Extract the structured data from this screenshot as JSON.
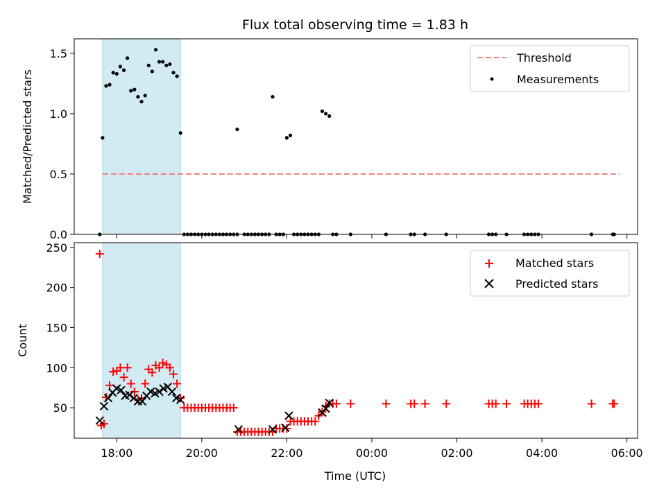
{
  "figure_title": "Flux total observing time = 1.83 h",
  "colors": {
    "threshold": "#f08080",
    "measurement": "#000000",
    "matched": "#ff0000",
    "predicted": "#000000",
    "span": "#add8e6"
  },
  "chart_data": [
    {
      "type": "scatter",
      "title": "Flux total observing time = 1.83 h",
      "xlabel": "",
      "ylabel": "Matched/Predicted stars",
      "xlim": [
        "17:00",
        "06:15"
      ],
      "ylim": [
        0,
        1.62
      ],
      "yticks": [
        "0.0",
        "0.5",
        "1.0",
        "1.5"
      ],
      "xticks": [
        "18:00",
        "20:00",
        "22:00",
        "00:00",
        "02:00",
        "04:00",
        "06:00"
      ],
      "highlight_span": [
        "17:40",
        "19:30"
      ],
      "legend": {
        "placement": "top-right",
        "threshold_label": "Threshold",
        "measurements_label": "Measurements"
      },
      "threshold": {
        "name": "Threshold",
        "value": 0.5,
        "x_range": [
          "17:40",
          "05:50"
        ]
      },
      "series": [
        {
          "name": "Measurements",
          "points": [
            [
              "17:36",
              0.0
            ],
            [
              "17:40",
              0.8
            ],
            [
              "17:45",
              1.23
            ],
            [
              "17:50",
              1.24
            ],
            [
              "17:55",
              1.34
            ],
            [
              "18:00",
              1.33
            ],
            [
              "18:05",
              1.39
            ],
            [
              "18:10",
              1.36
            ],
            [
              "18:15",
              1.46
            ],
            [
              "18:20",
              1.19
            ],
            [
              "18:25",
              1.2
            ],
            [
              "18:30",
              1.14
            ],
            [
              "18:35",
              1.1
            ],
            [
              "18:40",
              1.15
            ],
            [
              "18:45",
              1.4
            ],
            [
              "18:50",
              1.35
            ],
            [
              "18:55",
              1.53
            ],
            [
              "19:00",
              1.43
            ],
            [
              "19:05",
              1.43
            ],
            [
              "19:10",
              1.4
            ],
            [
              "19:15",
              1.41
            ],
            [
              "19:20",
              1.34
            ],
            [
              "19:25",
              1.31
            ],
            [
              "19:30",
              0.84
            ],
            [
              "19:35",
              0.0
            ],
            [
              "19:40",
              0.0
            ],
            [
              "19:45",
              0.0
            ],
            [
              "19:50",
              0.0
            ],
            [
              "19:55",
              0.0
            ],
            [
              "20:00",
              0.0
            ],
            [
              "20:05",
              0.0
            ],
            [
              "20:10",
              0.0
            ],
            [
              "20:15",
              0.0
            ],
            [
              "20:20",
              0.0
            ],
            [
              "20:25",
              0.0
            ],
            [
              "20:30",
              0.0
            ],
            [
              "20:35",
              0.0
            ],
            [
              "20:40",
              0.0
            ],
            [
              "20:45",
              0.0
            ],
            [
              "20:50",
              0.0
            ],
            [
              "20:50",
              0.87
            ],
            [
              "21:00",
              0.0
            ],
            [
              "21:05",
              0.0
            ],
            [
              "21:10",
              0.0
            ],
            [
              "21:15",
              0.0
            ],
            [
              "21:20",
              0.0
            ],
            [
              "21:25",
              0.0
            ],
            [
              "21:30",
              0.0
            ],
            [
              "21:35",
              0.0
            ],
            [
              "21:40",
              1.14
            ],
            [
              "21:45",
              0.0
            ],
            [
              "21:50",
              0.0
            ],
            [
              "21:55",
              0.0
            ],
            [
              "22:00",
              0.8
            ],
            [
              "22:05",
              0.82
            ],
            [
              "22:10",
              0.0
            ],
            [
              "22:15",
              0.0
            ],
            [
              "22:20",
              0.0
            ],
            [
              "22:25",
              0.0
            ],
            [
              "22:30",
              0.0
            ],
            [
              "22:35",
              0.0
            ],
            [
              "22:40",
              0.0
            ],
            [
              "22:45",
              0.0
            ],
            [
              "22:50",
              1.02
            ],
            [
              "22:55",
              1.0
            ],
            [
              "23:00",
              0.98
            ],
            [
              "23:05",
              0.0
            ],
            [
              "23:10",
              0.0
            ],
            [
              "23:30",
              0.0
            ],
            [
              "00:20",
              0.0
            ],
            [
              "00:55",
              0.0
            ],
            [
              "01:00",
              0.0
            ],
            [
              "01:15",
              0.0
            ],
            [
              "01:45",
              0.0
            ],
            [
              "02:45",
              0.0
            ],
            [
              "02:50",
              0.0
            ],
            [
              "02:55",
              0.0
            ],
            [
              "03:10",
              0.0
            ],
            [
              "03:35",
              0.0
            ],
            [
              "03:40",
              0.0
            ],
            [
              "03:45",
              0.0
            ],
            [
              "03:50",
              0.0
            ],
            [
              "03:55",
              0.0
            ],
            [
              "05:10",
              0.0
            ],
            [
              "05:40",
              0.0
            ],
            [
              "05:42",
              0.0
            ]
          ]
        }
      ]
    },
    {
      "type": "scatter",
      "title": "",
      "xlabel": "Time (UTC)",
      "ylabel": "Count",
      "xlim": [
        "17:00",
        "06:15"
      ],
      "ylim": [
        12,
        256
      ],
      "yticks": [
        "50",
        "100",
        "150",
        "200",
        "250"
      ],
      "xticks": [
        "18:00",
        "20:00",
        "22:00",
        "00:00",
        "02:00",
        "04:00",
        "06:00"
      ],
      "highlight_span": [
        "17:40",
        "19:30"
      ],
      "legend": {
        "placement": "top-right",
        "matched_label": "Matched stars",
        "predicted_label": "Predicted stars"
      },
      "series": [
        {
          "name": "Matched stars",
          "marker": "plus",
          "points": [
            [
              "17:36",
              242
            ],
            [
              "17:38",
              28
            ],
            [
              "17:42",
              30
            ],
            [
              "17:45",
              63
            ],
            [
              "17:50",
              78
            ],
            [
              "17:55",
              95
            ],
            [
              "18:00",
              96
            ],
            [
              "18:05",
              100
            ],
            [
              "18:10",
              88
            ],
            [
              "18:15",
              100
            ],
            [
              "18:20",
              80
            ],
            [
              "18:25",
              70
            ],
            [
              "18:30",
              60
            ],
            [
              "18:35",
              62
            ],
            [
              "18:40",
              80
            ],
            [
              "18:45",
              98
            ],
            [
              "18:50",
              94
            ],
            [
              "18:55",
              103
            ],
            [
              "19:00",
              100
            ],
            [
              "19:05",
              106
            ],
            [
              "19:10",
              104
            ],
            [
              "19:15",
              100
            ],
            [
              "19:20",
              92
            ],
            [
              "19:25",
              80
            ],
            [
              "19:30",
              62
            ],
            [
              "19:35",
              50
            ],
            [
              "19:40",
              50
            ],
            [
              "19:45",
              50
            ],
            [
              "19:50",
              50
            ],
            [
              "19:55",
              50
            ],
            [
              "20:00",
              50
            ],
            [
              "20:05",
              50
            ],
            [
              "20:10",
              50
            ],
            [
              "20:15",
              50
            ],
            [
              "20:20",
              50
            ],
            [
              "20:25",
              50
            ],
            [
              "20:30",
              50
            ],
            [
              "20:35",
              50
            ],
            [
              "20:40",
              50
            ],
            [
              "20:45",
              50
            ],
            [
              "20:50",
              20
            ],
            [
              "20:55",
              20
            ],
            [
              "21:00",
              20
            ],
            [
              "21:05",
              20
            ],
            [
              "21:10",
              20
            ],
            [
              "21:15",
              20
            ],
            [
              "21:20",
              20
            ],
            [
              "21:25",
              20
            ],
            [
              "21:30",
              20
            ],
            [
              "21:35",
              20
            ],
            [
              "21:40",
              20
            ],
            [
              "21:45",
              24
            ],
            [
              "21:50",
              24
            ],
            [
              "21:55",
              24
            ],
            [
              "22:00",
              24
            ],
            [
              "22:05",
              33
            ],
            [
              "22:10",
              33
            ],
            [
              "22:15",
              33
            ],
            [
              "22:20",
              33
            ],
            [
              "22:25",
              33
            ],
            [
              "22:30",
              33
            ],
            [
              "22:35",
              33
            ],
            [
              "22:40",
              33
            ],
            [
              "22:45",
              40
            ],
            [
              "22:50",
              45
            ],
            [
              "22:55",
              52
            ],
            [
              "23:00",
              55
            ],
            [
              "23:05",
              55
            ],
            [
              "23:10",
              55
            ],
            [
              "23:30",
              55
            ],
            [
              "00:20",
              55
            ],
            [
              "00:55",
              55
            ],
            [
              "01:00",
              55
            ],
            [
              "01:15",
              55
            ],
            [
              "01:45",
              55
            ],
            [
              "02:45",
              55
            ],
            [
              "02:50",
              55
            ],
            [
              "02:55",
              55
            ],
            [
              "03:10",
              55
            ],
            [
              "03:35",
              55
            ],
            [
              "03:40",
              55
            ],
            [
              "03:45",
              55
            ],
            [
              "03:50",
              55
            ],
            [
              "03:55",
              55
            ],
            [
              "05:10",
              55
            ],
            [
              "05:40",
              55
            ],
            [
              "05:42",
              55
            ]
          ]
        },
        {
          "name": "Predicted stars",
          "marker": "x",
          "points": [
            [
              "17:36",
              34
            ],
            [
              "17:42",
              52
            ],
            [
              "17:48",
              62
            ],
            [
              "17:54",
              69
            ],
            [
              "18:00",
              74
            ],
            [
              "18:06",
              72
            ],
            [
              "18:12",
              65
            ],
            [
              "18:18",
              66
            ],
            [
              "18:24",
              62
            ],
            [
              "18:30",
              58
            ],
            [
              "18:36",
              58
            ],
            [
              "18:42",
              65
            ],
            [
              "18:48",
              70
            ],
            [
              "18:54",
              68
            ],
            [
              "19:00",
              70
            ],
            [
              "19:06",
              74
            ],
            [
              "19:12",
              76
            ],
            [
              "19:18",
              70
            ],
            [
              "19:24",
              62
            ],
            [
              "19:30",
              60
            ],
            [
              "20:52",
              23
            ],
            [
              "21:40",
              23
            ],
            [
              "21:58",
              25
            ],
            [
              "22:03",
              40
            ],
            [
              "22:50",
              44
            ],
            [
              "22:55",
              49
            ],
            [
              "23:00",
              56
            ]
          ]
        }
      ]
    }
  ]
}
